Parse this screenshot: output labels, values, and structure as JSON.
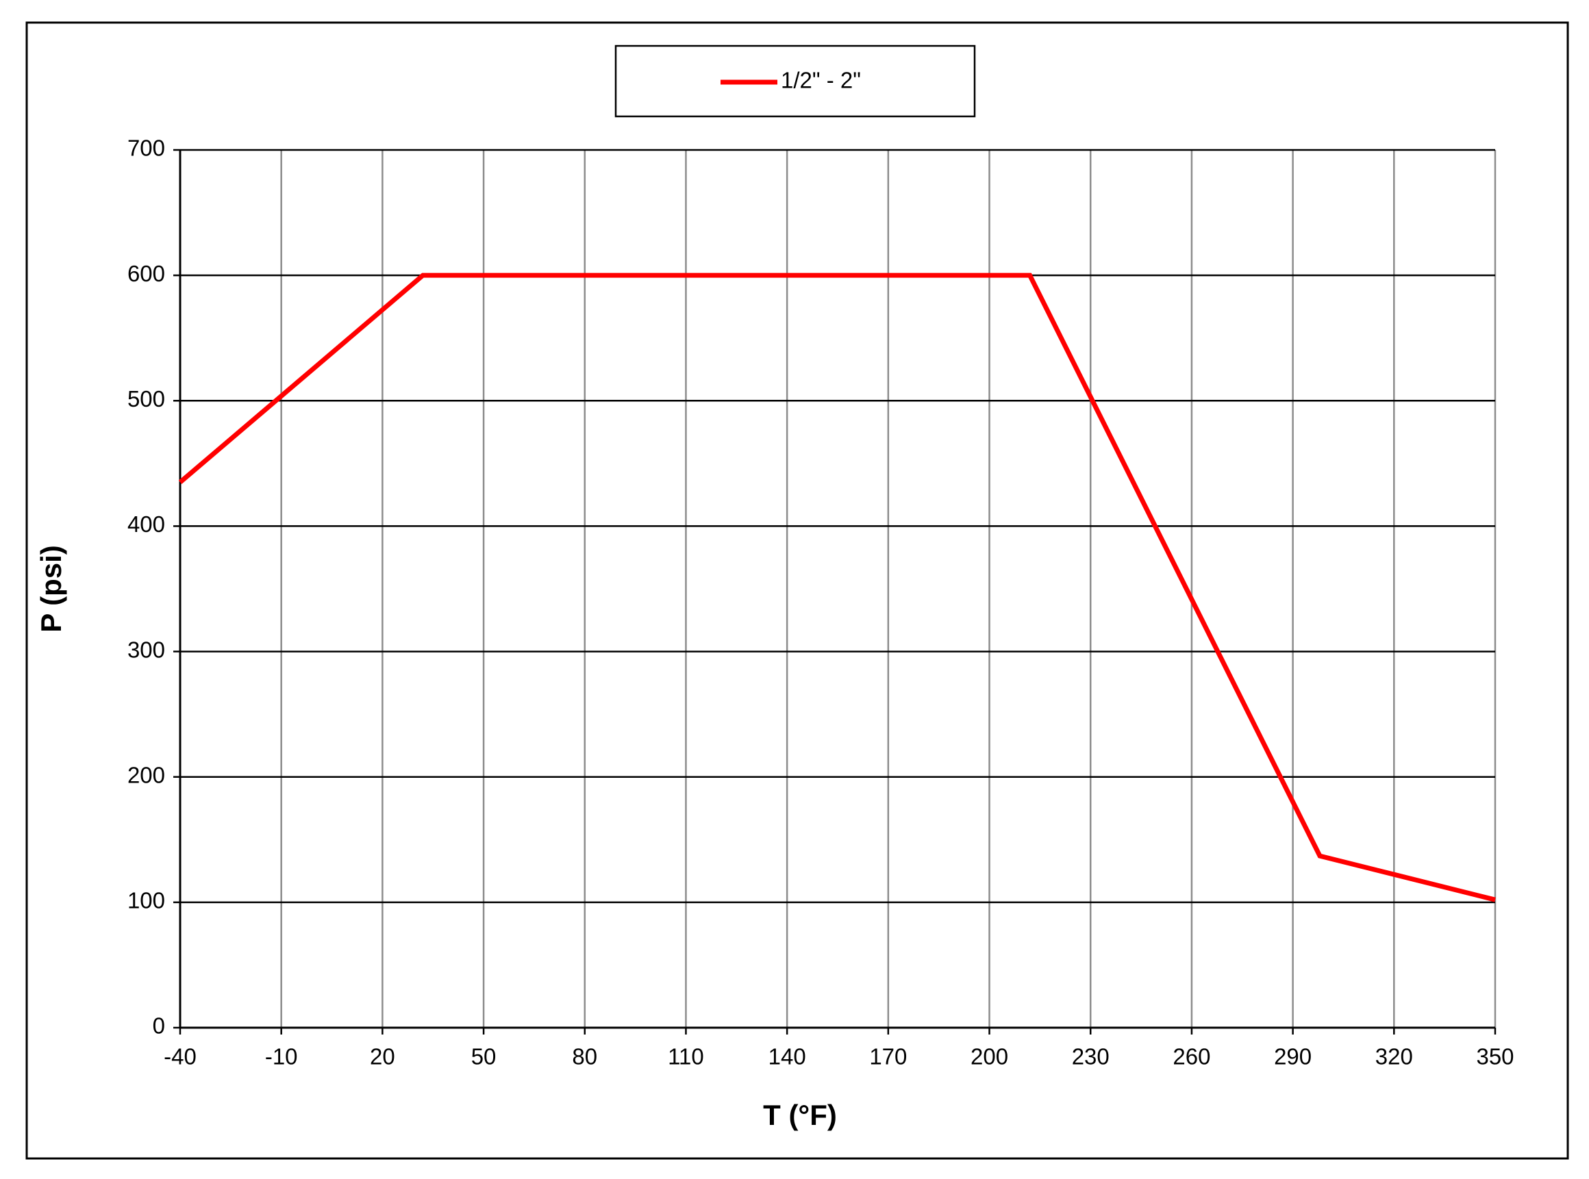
{
  "chart_data": {
    "type": "line",
    "x_label": "T (°F)",
    "y_label": "P (psi)",
    "x": [
      -40,
      32,
      212,
      298,
      350
    ],
    "series": [
      {
        "name": "1/2\" - 2\"",
        "color": "#ff0000",
        "values": [
          435,
          600,
          600,
          137,
          102
        ]
      }
    ],
    "xlim": [
      -40,
      350
    ],
    "xticks": [
      -40,
      -10,
      20,
      50,
      80,
      110,
      140,
      170,
      200,
      230,
      260,
      290,
      320,
      350
    ],
    "ylim": [
      0,
      700
    ],
    "yticks": [
      0,
      100,
      200,
      300,
      400,
      500,
      600,
      700
    ],
    "grid": true,
    "legend": "top"
  }
}
